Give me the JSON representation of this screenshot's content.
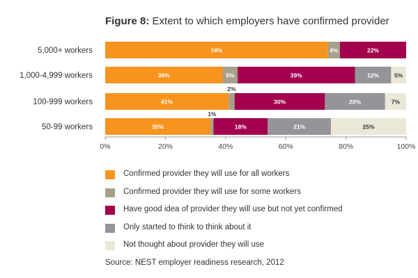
{
  "title_prefix": "Figure 8:",
  "title_text": "Extent to which employers have confirmed provider",
  "source": "Source: NEST employer readiness research, 2012",
  "colors": {
    "confirmed_all": "#f7941e",
    "confirmed_some": "#a6a08a",
    "good_idea": "#a3004d",
    "started": "#939598",
    "not_thought": "#ebe8d7",
    "axis": "#999999"
  },
  "legend": [
    {
      "label": "Confirmed provider they will use for all workers",
      "color": "#f7941e"
    },
    {
      "label": "Confirmed provider they will use for some workers",
      "color": "#a6a08a"
    },
    {
      "label": "Have good idea of provider they will use but not yet confirmed",
      "color": "#a3004d"
    },
    {
      "label": "Only started to think to think about it",
      "color": "#939598"
    },
    {
      "label": "Not thought about provider they will use",
      "color": "#ebe8d7"
    }
  ],
  "chart_data": {
    "type": "bar",
    "orientation": "horizontal",
    "stacked": true,
    "title": "Figure 8: Extent to which employers have confirmed provider",
    "categories": [
      "5,000+ workers",
      "1,000-4,999 workers",
      "100-999 workers",
      "50-99 workers"
    ],
    "series": [
      {
        "name": "Confirmed provider they will use for all workers",
        "values": [
          74,
          39,
          41,
          35
        ]
      },
      {
        "name": "Confirmed provider they will use for some workers",
        "values": [
          4,
          5,
          2,
          1
        ]
      },
      {
        "name": "Have good idea of provider they will use but not yet confirmed",
        "values": [
          22,
          39,
          30,
          18
        ]
      },
      {
        "name": "Only started to think to think about it",
        "values": [
          0,
          12,
          20,
          21
        ]
      },
      {
        "name": "Not thought about provider they will use",
        "values": [
          0,
          5,
          7,
          25
        ]
      }
    ],
    "labels": [
      [
        "74%",
        "4%",
        "22%",
        "",
        ""
      ],
      [
        "39%",
        "5%",
        "39%",
        "12%",
        "5%"
      ],
      [
        "41%",
        "2%",
        "30%",
        "20%",
        "7%"
      ],
      [
        "35%",
        "1%",
        "18%",
        "21%",
        "25%"
      ]
    ],
    "xlim": [
      0,
      100
    ],
    "xticks": [
      "0%",
      "20%",
      "40%",
      "60%",
      "80%",
      "100%"
    ],
    "legend_position": "bottom"
  }
}
